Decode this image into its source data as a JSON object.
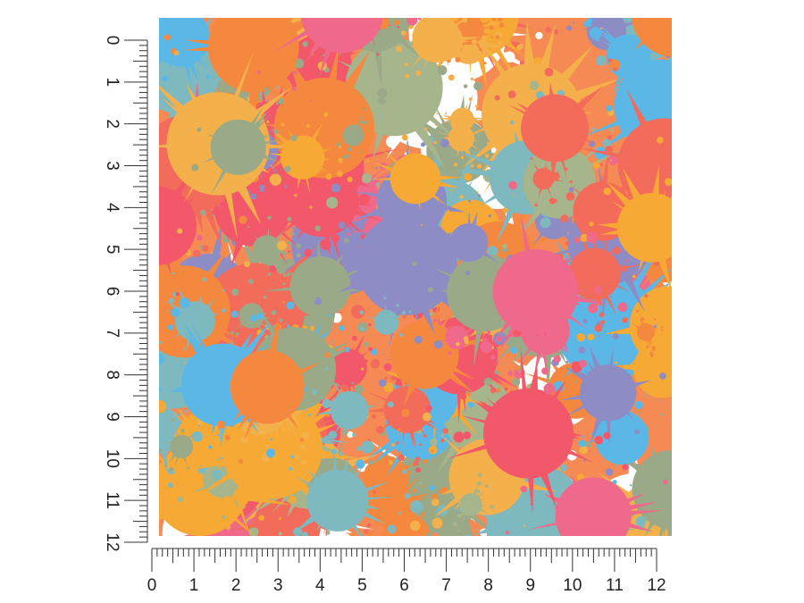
{
  "vertical_ruler": {
    "labels": [
      "0",
      "1",
      "2",
      "3",
      "4",
      "5",
      "6",
      "7",
      "8",
      "9",
      "10",
      "11",
      "12"
    ]
  },
  "horizontal_ruler": {
    "labels": [
      "0",
      "1",
      "2",
      "3",
      "4",
      "5",
      "6",
      "7",
      "8",
      "9",
      "10",
      "11",
      "12"
    ]
  }
}
